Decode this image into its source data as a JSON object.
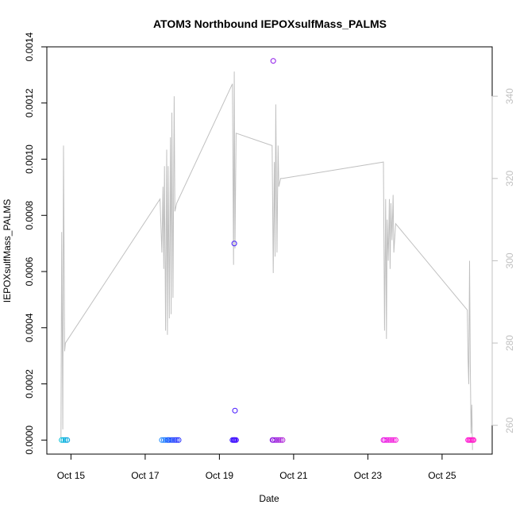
{
  "chart_data": {
    "type": "scatter",
    "title": "ATOM3 Northbound IEPOXsulfMass_PALMS",
    "xlabel": "Date",
    "ylabel": "IEPOXsulfMass_PALMS",
    "x_tick_labels": [
      "Oct 15",
      "Oct 17",
      "Oct 19",
      "Oct 21",
      "Oct 23",
      "Oct 25"
    ],
    "x_tick_values": [
      15,
      17,
      19,
      21,
      23,
      25
    ],
    "xlim": [
      14.35,
      26.35
    ],
    "y_tick_labels": [
      "0.0000",
      "0.0002",
      "0.0004",
      "0.0006",
      "0.0008",
      "0.0010",
      "0.0012",
      "0.0014"
    ],
    "y_tick_values": [
      0,
      0.0002,
      0.0004,
      0.0006,
      0.0008,
      0.001,
      0.0012,
      0.0014
    ],
    "ylim": [
      -5e-05,
      0.0014
    ],
    "y2_tick_labels": [
      "260",
      "280",
      "300",
      "320",
      "340"
    ],
    "y2_tick_values": [
      260,
      280,
      300,
      320,
      340
    ],
    "y2lim": [
      253,
      352
    ],
    "colors": {
      "line": "#c0c0c0",
      "axis": "#000000",
      "right_axis": "#c0c0c0"
    },
    "scatter": {
      "x": [
        14.75,
        14.8,
        14.85,
        14.9,
        17.45,
        17.5,
        17.55,
        17.6,
        17.62,
        17.65,
        17.7,
        17.75,
        17.8,
        17.85,
        17.9,
        19.35,
        19.38,
        19.4,
        19.42,
        19.45,
        19.4,
        19.42,
        20.43,
        20.45,
        20.5,
        20.55,
        20.6,
        20.65,
        20.7,
        20.45,
        23.42,
        23.45,
        23.5,
        23.55,
        23.6,
        23.65,
        23.7,
        23.75,
        25.7,
        25.73,
        25.76,
        25.79,
        25.82,
        25.85
      ],
      "y": [
        0,
        0,
        0,
        0,
        0,
        0,
        0,
        0,
        0,
        0,
        0,
        0,
        0,
        0,
        0,
        0,
        0,
        0,
        0,
        0,
        0.0007,
        0.000105,
        0,
        0,
        0,
        0,
        0,
        0,
        0,
        0.00135,
        0,
        0,
        0,
        0,
        0,
        0,
        0,
        0,
        0,
        0,
        0,
        0,
        0,
        0
      ],
      "colors": [
        "#00bfd8",
        "#00b4da",
        "#00aadd",
        "#00a0e0",
        "#1e8cff",
        "#1e82ff",
        "#1e78ff",
        "#1e6eff",
        "#1e64ff",
        "#1e5aff",
        "#1e50ff",
        "#1e46ff",
        "#1e3cff",
        "#1e32ff",
        "#1e28ff",
        "#3a1eff",
        "#3c18ff",
        "#4014ff",
        "#4410ff",
        "#480cff",
        "#3c10ff",
        "#4010ff",
        "#8a1ee6",
        "#901ee0",
        "#961ede",
        "#9c1edc",
        "#a21eda",
        "#a81ed8",
        "#ae1ed6",
        "#8a10e8",
        "#e81ee6",
        "#ea1ee4",
        "#ec1ee2",
        "#ee1ee0",
        "#f01ede",
        "#f21edc",
        "#f41eda",
        "#f61ed8",
        "#ff1ed6",
        "#ff1ed3",
        "#ff1ed0",
        "#ff1ecd",
        "#ff1eca",
        "#ff1ec7"
      ]
    },
    "line_series": {
      "x": [
        14.73,
        14.75,
        14.78,
        14.8,
        14.83,
        14.85,
        17.4,
        17.45,
        17.48,
        17.5,
        17.52,
        17.55,
        17.58,
        17.6,
        17.62,
        17.65,
        17.68,
        17.7,
        17.72,
        17.75,
        17.78,
        17.8,
        17.85,
        19.35,
        19.38,
        19.4,
        19.42,
        19.45,
        20.42,
        20.45,
        20.48,
        20.5,
        20.52,
        20.55,
        20.58,
        20.6,
        20.65,
        20.7,
        23.42,
        23.45,
        23.48,
        23.5,
        23.52,
        23.55,
        23.58,
        23.6,
        23.62,
        23.65,
        23.68,
        23.7,
        23.75,
        25.68,
        25.7,
        25.72,
        25.74,
        25.76,
        25.78,
        25.8,
        25.82
      ],
      "y": [
        257,
        307,
        259,
        328,
        278,
        280,
        315,
        302,
        318,
        298,
        323,
        283,
        327,
        282,
        323,
        286,
        330,
        287,
        336,
        291,
        340,
        312,
        314,
        343,
        299,
        346,
        303,
        331,
        328,
        297,
        324,
        301,
        338,
        302,
        328,
        318,
        320,
        320,
        324,
        283,
        315,
        281,
        310,
        300,
        315,
        298,
        314,
        305,
        316,
        302,
        309,
        288,
        276,
        270,
        300,
        275,
        258,
        265,
        254
      ]
    }
  }
}
